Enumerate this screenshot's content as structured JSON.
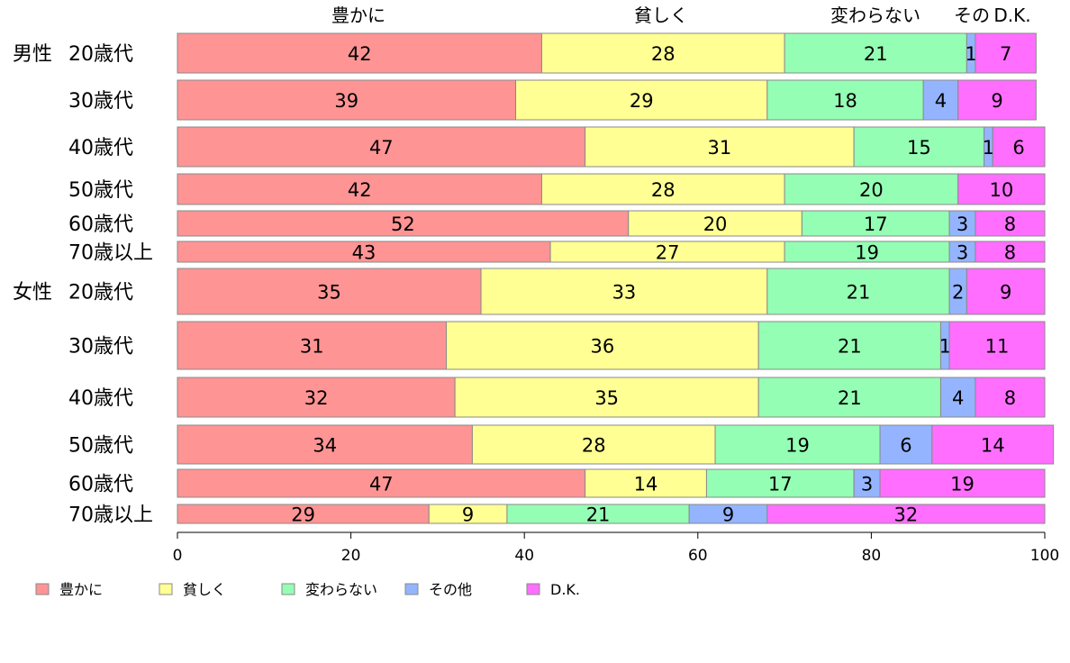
{
  "chart_data": {
    "type": "bar",
    "orientation": "horizontal",
    "stacked": true,
    "xlim": [
      0,
      100
    ],
    "xticks": [
      0,
      20,
      40,
      60,
      80,
      100
    ],
    "grid": false,
    "legend_position": "bottom",
    "top_labels": [
      "豊かに",
      "貧しく",
      "変わらない",
      "その",
      "D.K."
    ],
    "groups": [
      "男性",
      "女性"
    ],
    "rows": [
      {
        "group": "男性",
        "category": "20歳代"
      },
      {
        "group": "",
        "category": "30歳代"
      },
      {
        "group": "",
        "category": "40歳代"
      },
      {
        "group": "",
        "category": "50歳代"
      },
      {
        "group": "",
        "category": "60歳代"
      },
      {
        "group": "",
        "category": "70歳以上"
      },
      {
        "group": "女性",
        "category": "20歳代"
      },
      {
        "group": "",
        "category": "30歳代"
      },
      {
        "group": "",
        "category": "40歳代"
      },
      {
        "group": "",
        "category": "50歳代"
      },
      {
        "group": "",
        "category": "60歳代"
      },
      {
        "group": "",
        "category": "70歳以上"
      }
    ],
    "series": [
      {
        "name": "豊かに",
        "color": "#ff9494",
        "values": [
          42,
          39,
          47,
          42,
          52,
          43,
          35,
          31,
          32,
          34,
          47,
          29
        ]
      },
      {
        "name": "貧しく",
        "color": "#ffff94",
        "values": [
          28,
          29,
          31,
          28,
          20,
          27,
          33,
          36,
          35,
          28,
          14,
          9
        ]
      },
      {
        "name": "変わらない",
        "color": "#94ffb4",
        "values": [
          21,
          18,
          15,
          20,
          17,
          19,
          21,
          21,
          21,
          19,
          17,
          21
        ]
      },
      {
        "name": "その他",
        "color": "#94b4ff",
        "values": [
          1,
          4,
          1,
          0,
          3,
          3,
          2,
          1,
          4,
          6,
          3,
          9
        ]
      },
      {
        "name": "D.K.",
        "color": "#ff6eff",
        "values": [
          7,
          9,
          6,
          10,
          8,
          8,
          9,
          11,
          8,
          14,
          19,
          32
        ]
      }
    ]
  }
}
